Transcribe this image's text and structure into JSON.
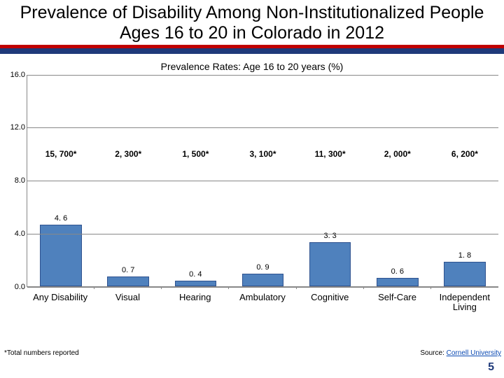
{
  "title": "Prevalence of Disability Among Non-Institutionalized People Ages 16 to 20 in Colorado in 2012",
  "subtitle": "Prevalence Rates: Age 16 to 20 years (%)",
  "chart": {
    "type": "bar",
    "ylim": [
      0,
      16
    ],
    "ytick_step": 4,
    "yticks": [
      "0.0",
      "4.0",
      "8.0",
      "12.0",
      "16.0"
    ],
    "bar_color": "#4f81bd",
    "bar_border": "#2f528f",
    "grid_color": "#888888",
    "categories": [
      "Any Disability",
      "Visual",
      "Hearing",
      "Ambulatory",
      "Cognitive",
      "Self-Care",
      "Independent Living"
    ],
    "values": [
      4.6,
      0.7,
      0.4,
      0.9,
      3.3,
      0.6,
      1.8
    ],
    "value_labels": [
      "4. 6",
      "0. 7",
      "0. 4",
      "0. 9",
      "3. 3",
      "0. 6",
      "1. 8"
    ],
    "annotations": [
      "15, 700*",
      "2, 300*",
      "1, 500*",
      "3, 100*",
      "11, 300*",
      "2, 000*",
      "6, 200*"
    ]
  },
  "footnote_left": "*Total numbers reported",
  "footnote_right_prefix": "Source: ",
  "footnote_right_link": "Cornell University",
  "page_number": "5"
}
